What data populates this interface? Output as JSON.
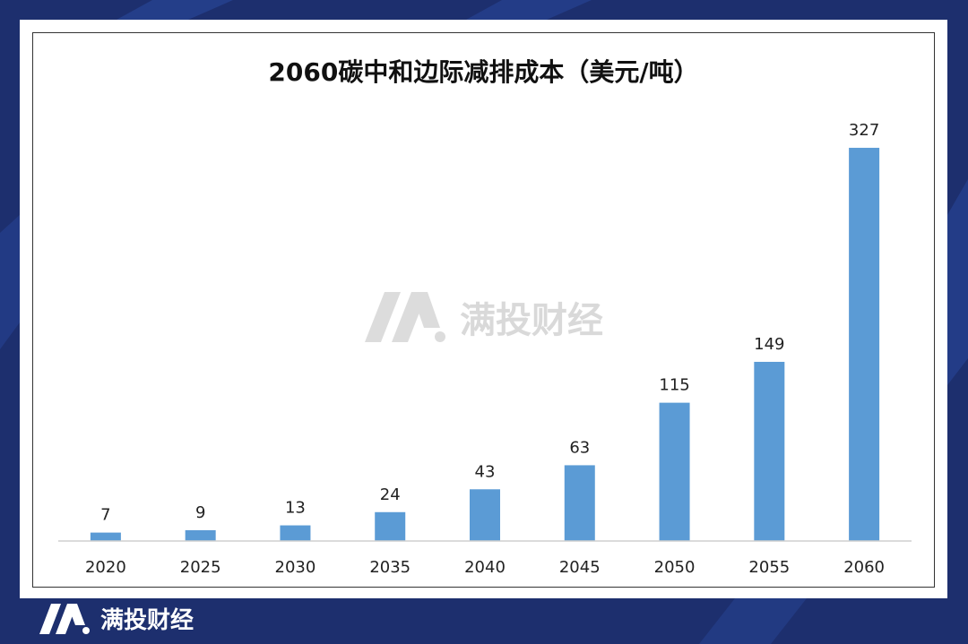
{
  "brand": {
    "name": "满投财经",
    "bg_color": "#1d2f6e",
    "accent_color": "#2a4aa0"
  },
  "chart_data": {
    "type": "bar",
    "title": "2060碳中和边际减排成本（美元/吨）",
    "categories": [
      "2020",
      "2025",
      "2030",
      "2035",
      "2040",
      "2045",
      "2050",
      "2055",
      "2060"
    ],
    "values": [
      7,
      9,
      13,
      24,
      43,
      63,
      115,
      149,
      327
    ],
    "bar_color": "#5b9bd5",
    "grid": false,
    "legend": "none",
    "ylim": [
      0,
      330
    ]
  }
}
